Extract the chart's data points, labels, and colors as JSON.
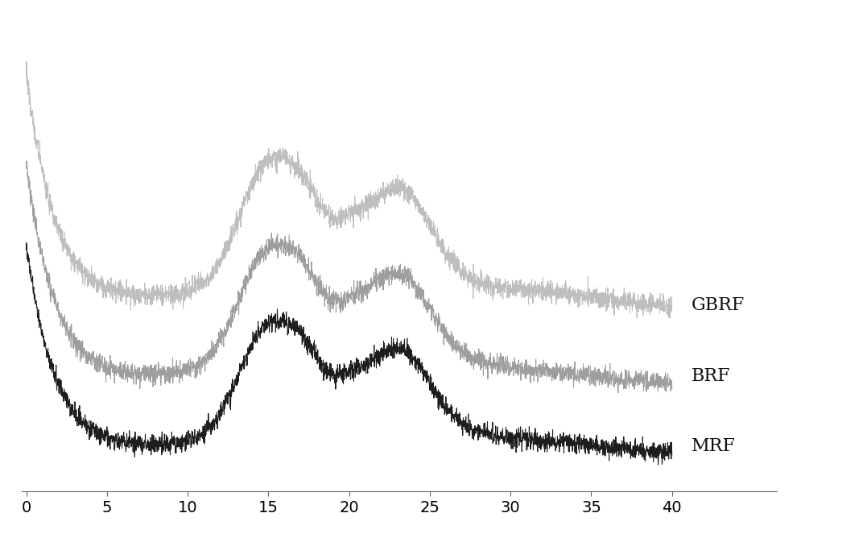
{
  "x_min": 0,
  "x_max": 40,
  "x_ticks": [
    0,
    5,
    10,
    15,
    20,
    25,
    30,
    35,
    40
  ],
  "labels": [
    "MRF",
    "BRF",
    "GBRF"
  ],
  "colors": [
    "#111111",
    "#999999",
    "#bbbbbb"
  ],
  "label_fontsize": 16,
  "tick_fontsize": 14,
  "background_color": "#ffffff",
  "offsets": [
    0.0,
    0.18,
    0.38
  ],
  "noise_seed": 42
}
